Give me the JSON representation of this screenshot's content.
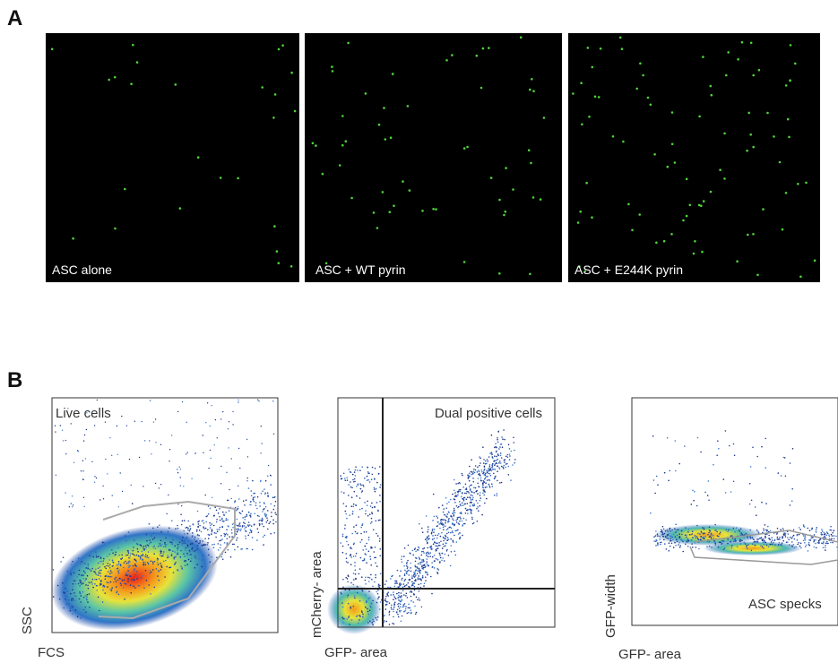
{
  "panels": [
    {
      "label": "A",
      "images": [
        {
          "caption": "ASC alone"
        },
        {
          "caption": "ASC + WT pyrin"
        },
        {
          "caption": "ASC + E244K pyrin"
        }
      ]
    },
    {
      "label": "B",
      "plots": [
        {
          "title": "Live cells",
          "x_label": "FCS",
          "y_label": "SSC"
        },
        {
          "title": "Dual positive cells",
          "x_label": "GFP- area",
          "y_label": "mCherry- area"
        },
        {
          "title": "ASC specks",
          "x_label": "GFP- area",
          "y_label": "GFP-width"
        }
      ]
    }
  ]
}
